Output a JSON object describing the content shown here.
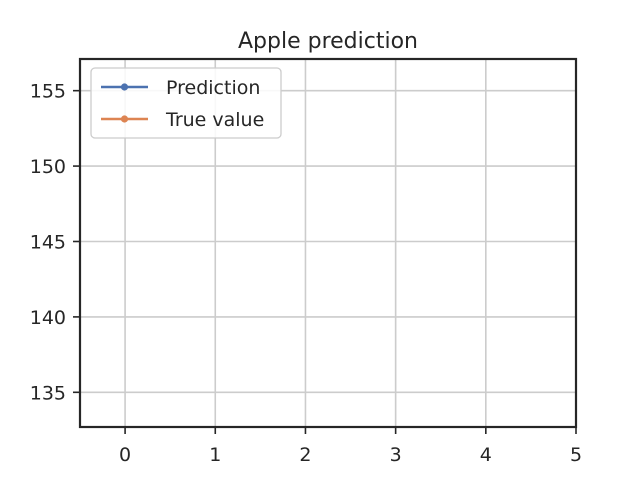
{
  "chart_data": {
    "type": "line",
    "title": "Apple prediction",
    "xlabel": "",
    "ylabel": "",
    "xlim": [
      -0.5,
      5
    ],
    "ylim": [
      132.7,
      157.1
    ],
    "xticks": [
      0,
      1,
      2,
      3,
      4,
      5
    ],
    "yticks": [
      135,
      140,
      145,
      150,
      155
    ],
    "xtick_labels": [
      "0",
      "1",
      "2",
      "3",
      "4",
      "5"
    ],
    "ytick_labels": [
      "135",
      "140",
      "145",
      "150",
      "155"
    ],
    "grid": true,
    "legend_position": "top-left",
    "series": [
      {
        "name": "Prediction",
        "color": "#4c72b0",
        "marker": "circle",
        "x": [],
        "y": []
      },
      {
        "name": "True value",
        "color": "#dd8452",
        "marker": "circle",
        "x": [],
        "y": []
      }
    ]
  }
}
